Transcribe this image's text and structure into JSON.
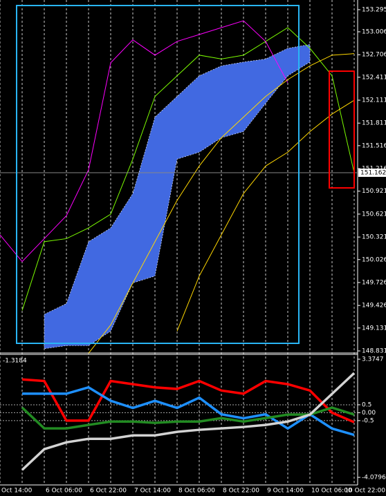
{
  "chart_data": [
    {
      "type": "line",
      "ylim": [
        148.831,
        153.295
      ],
      "yticks": [
        153.295,
        153.006,
        152.706,
        152.411,
        152.111,
        151.811,
        151.516,
        151.216,
        150.921,
        150.621,
        150.321,
        150.026,
        149.726,
        149.426,
        149.131,
        148.831
      ],
      "last_price": 151.162,
      "bands": [
        {
          "color": "#4169e1",
          "upper": [
            null,
            null,
            149.31,
            149.45,
            150.26,
            150.44,
            150.89,
            151.89,
            152.16,
            152.43,
            152.56,
            152.61,
            152.65,
            152.79,
            152.84,
            null,
            null
          ],
          "lower": [
            null,
            null,
            148.86,
            148.9,
            148.9,
            149.09,
            149.72,
            149.81,
            151.34,
            151.43,
            151.62,
            151.7,
            152.07,
            152.43,
            152.61,
            null,
            null
          ]
        }
      ],
      "series": [
        {
          "color": "#7cfc00",
          "values": [
            null,
            149.36,
            150.26,
            150.3,
            150.44,
            150.62,
            151.34,
            152.16,
            152.43,
            152.7,
            152.65,
            152.7,
            152.88,
            153.06,
            152.79,
            152.43,
            151.16
          ]
        },
        {
          "color": "#ff00ff",
          "values": [
            150.35,
            150.0,
            150.3,
            150.6,
            151.2,
            152.6,
            152.9,
            152.7,
            152.88,
            152.97,
            153.06,
            153.15,
            152.88,
            152.34,
            null,
            null,
            null
          ]
        },
        {
          "color": "#ffd700",
          "values": [
            null,
            null,
            null,
            null,
            148.8,
            149.17,
            149.72,
            150.26,
            150.8,
            151.25,
            151.62,
            151.89,
            152.16,
            152.38,
            152.56,
            152.7,
            152.72
          ]
        },
        {
          "color": "#ffd700",
          "values": [
            null,
            null,
            null,
            null,
            null,
            null,
            null,
            null,
            149.09,
            149.81,
            150.35,
            150.89,
            151.25,
            151.43,
            151.7,
            151.93,
            152.11
          ]
        }
      ]
    },
    {
      "type": "line",
      "indicator_label": "-1.3184",
      "ylim": [
        -4.0796,
        3.3747
      ],
      "yticks": [
        3.3747,
        0.5,
        {
          "value": 0,
          "label": "0.00"
        },
        -0.5,
        -4.0796
      ],
      "levels": [
        0.5,
        0,
        -0.5
      ],
      "categories": [
        "Oct 14:00",
        null,
        "6 Oct 06:00",
        null,
        "6 Oct 22:00",
        null,
        "7 Oct 14:00",
        null,
        "8 Oct 06:00",
        null,
        "8 Oct 22:00",
        null,
        "9 Oct 14:00",
        null,
        "10 Oct 06:00",
        null,
        "10 Oct 22:00"
      ],
      "series": [
        {
          "color": "#ff0000",
          "values": [
            null,
            2.1,
            2.0,
            -0.5,
            -0.5,
            2.0,
            1.8,
            1.6,
            1.5,
            2.0,
            1.4,
            1.2,
            2.0,
            1.8,
            1.4,
            0.0,
            -0.6
          ]
        },
        {
          "color": "#1e90ff",
          "values": [
            null,
            1.2,
            1.2,
            1.2,
            1.6,
            0.75,
            0.3,
            0.75,
            0.3,
            0.95,
            -0.1,
            -0.35,
            -0.1,
            -1.0,
            -0.1,
            -1.0,
            -1.4
          ]
        },
        {
          "color": "#228b22",
          "values": [
            null,
            0.32,
            -0.99,
            -0.99,
            -0.77,
            -0.56,
            -0.56,
            -0.64,
            -0.56,
            -0.56,
            -0.34,
            -0.56,
            -0.34,
            -0.12,
            -0.12,
            0.32,
            -0.12
          ]
        },
        {
          "color": "#d3d3d3",
          "values": [
            null,
            -3.61,
            -2.3,
            -1.87,
            -1.65,
            -1.65,
            -1.43,
            -1.43,
            -1.21,
            -1.08,
            -0.99,
            -0.9,
            -0.77,
            -0.56,
            -0.12,
            1.19,
            2.5
          ]
        }
      ]
    }
  ]
}
